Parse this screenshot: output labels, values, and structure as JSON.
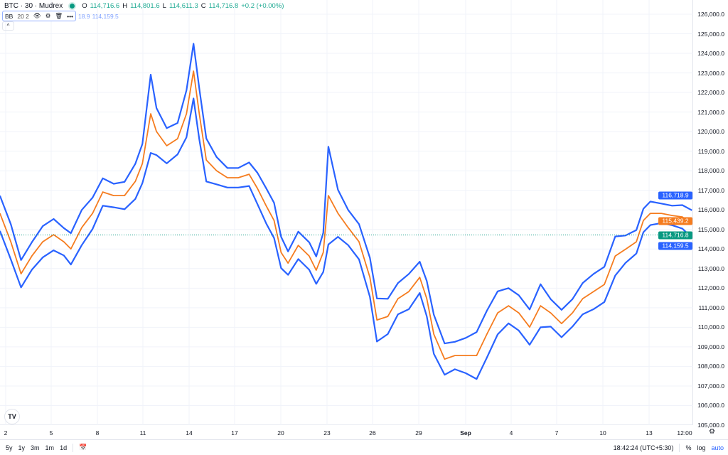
{
  "header": {
    "symbol": "BTC · 30 · Mudrex",
    "status_color": "#089981",
    "open_label": "O",
    "open": "114,716.6",
    "high_label": "H",
    "high": "114,801.6",
    "low_label": "L",
    "low": "114,611.3",
    "close_label": "C",
    "close": "114,716.8",
    "change": "+0.2 (+0.00%)"
  },
  "indicator": {
    "name": "BB",
    "params": "20 2",
    "values_upper_partial": "18.9",
    "value_lower": "114,159.5",
    "icons": [
      "eye-icon",
      "settings-icon",
      "trash-icon",
      "more-icon"
    ]
  },
  "collapse_icon": "chevron-up-icon",
  "y_axis": {
    "ticks": [
      "126,000.0",
      "125,000.0",
      "124,000.0",
      "123,000.0",
      "122,000.0",
      "121,000.0",
      "120,000.0",
      "119,000.0",
      "118,000.0",
      "117,000.0",
      "116,000.0",
      "115,000.0",
      "114,000.0",
      "113,000.0",
      "112,000.0",
      "111,000.0",
      "110,000.0",
      "109,000.0",
      "108,000.0",
      "107,000.0",
      "106,000.0",
      "105,000.0"
    ],
    "price_labels": [
      {
        "text": "116,718.9",
        "value": 116718.9,
        "color": "#2962ff"
      },
      {
        "text": "115,439.2",
        "value": 115439.2,
        "color": "#f57c1f"
      },
      {
        "text": "114,716.8",
        "value": 114716.8,
        "color": "#089981"
      },
      {
        "text": "114,159.5",
        "value": 114159.5,
        "color": "#2962ff"
      }
    ]
  },
  "x_axis": {
    "ticks": [
      "2",
      "5",
      "8",
      "11",
      "14",
      "17",
      "20",
      "23",
      "26",
      "29",
      "Sep",
      "4",
      "7",
      "10",
      "13",
      "12:00"
    ]
  },
  "bottom": {
    "ranges": [
      "5y",
      "1y",
      "3m",
      "1m",
      "1d"
    ],
    "time": "18:42:24 (UTC+5:30)",
    "percent": "%",
    "log": "log",
    "auto": "auto"
  },
  "chart_data": {
    "type": "line",
    "series": [
      {
        "role": "basis",
        "color": "#f57c1f",
        "x": [
          "Aug 1 15:00",
          "Aug 2 08:00",
          "Aug 3 00:00",
          "Aug 3 17:00",
          "Aug 4 10:00",
          "Aug 5 03:00",
          "Aug 5 19:00",
          "Aug 6 06:00",
          "Aug 6 23:00",
          "Aug 7 16:00",
          "Aug 8 08:00",
          "Aug 9 01:00",
          "Aug 9 18:00",
          "Aug 10 11:00",
          "Aug 10 22:00",
          "Aug 11 11:00",
          "Aug 11 20:00",
          "Aug 12 12:00",
          "Aug 13 05:00",
          "Aug 13 19:00",
          "Aug 14 06:00",
          "Aug 14 15:00",
          "Aug 15 02:00",
          "Aug 15 18:00",
          "Aug 16 11:00",
          "Aug 17 04:00",
          "Aug 17 21:00",
          "Aug 18 10:00",
          "Aug 19 00:00",
          "Aug 19 12:00",
          "Aug 19 23:00",
          "Aug 20 10:00",
          "Aug 21 02:00",
          "Aug 21 19:00",
          "Aug 22 06:00",
          "Aug 22 17:00",
          "Aug 23 01:00",
          "Aug 23 16:00",
          "Aug 24 08:00",
          "Aug 25 01:00",
          "Aug 25 18:00",
          "Aug 26 05:00",
          "Aug 26 22:00",
          "Aug 27 14:00",
          "Aug 28 07:00",
          "Aug 29 00:00",
          "Aug 29 11:00",
          "Aug 29 22:00",
          "Aug 30 15:00",
          "Aug 31 07:00",
          "Sep 1 00:00",
          "Sep 1 17:00",
          "Sep 2 09:00",
          "Sep 3 02:00",
          "Sep 3 19:00",
          "Sep 4 11:00",
          "Sep 5 04:00",
          "Sep 5 21:00",
          "Sep 6 13:00",
          "Sep 7 06:00",
          "Sep 7 23:00",
          "Sep 8 15:00",
          "Sep 9 08:00",
          "Sep 10 01:00",
          "Sep 10 18:00",
          "Sep 11 10:00",
          "Sep 12 03:00",
          "Sep 12 14:00",
          "Sep 13 01:00",
          "Sep 13 18:00",
          "Sep 14 11:00",
          "Sep 15 03:00",
          "Sep 15 18:00"
        ],
        "values": [
          115825,
          114371,
          112736,
          113644,
          114371,
          114735,
          114371,
          114008,
          115098,
          115825,
          116915,
          116733,
          116733,
          117460,
          118369,
          120912,
          120004,
          119277,
          119640,
          120912,
          123093,
          120912,
          118550,
          118005,
          117642,
          117642,
          117823,
          117097,
          116188,
          115461,
          113826,
          113281,
          114189,
          113644,
          112918,
          113826,
          116733,
          115825,
          115098,
          114371,
          112554,
          110374,
          110555,
          111464,
          111827,
          112554,
          111464,
          109647,
          108375,
          108557,
          108557,
          108557,
          109647,
          110737,
          111101,
          110737,
          110010,
          111101,
          110737,
          110192,
          110737,
          111464,
          111827,
          112191,
          113644,
          113990,
          114371,
          115461,
          115825,
          115825,
          115716,
          115643,
          115280
        ],
        "band_halfwidth": [
          900,
          900,
          700,
          700,
          800,
          800,
          700,
          800,
          900,
          800,
          700,
          600,
          700,
          900,
          1000,
          2000,
          1200,
          900,
          800,
          1200,
          1400,
          1300,
          1100,
          700,
          500,
          500,
          600,
          800,
          900,
          900,
          800,
          600,
          700,
          700,
          700,
          1000,
          2500,
          1200,
          900,
          900,
          1000,
          1100,
          900,
          800,
          900,
          800,
          900,
          1000,
          800,
          700,
          900,
          1200,
          1200,
          1100,
          900,
          900,
          900,
          1100,
          700,
          700,
          700,
          800,
          900,
          900,
          1000,
          700,
          600,
          600,
          600,
          500,
          500,
          600,
          700
        ]
      }
    ],
    "y_range": [
      105000,
      126000
    ],
    "upper_color": "#2962ff",
    "lower_color": "#2962ff",
    "grid": true
  }
}
